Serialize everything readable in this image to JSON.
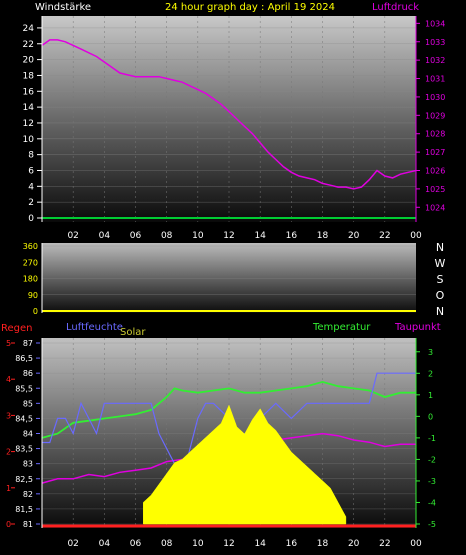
{
  "header": {
    "left_label": "Windstärke",
    "title": "24 hour graph day : April 19 2024",
    "right_label": "Luftdruck"
  },
  "legend": {
    "regen": "Regen",
    "luftfeuchte": "Luftfeuchte",
    "solar": "Solar",
    "temperatur": "Temperatur",
    "taupunkt": "Taupunkt"
  },
  "colors": {
    "wind": "#00cc33",
    "pressure": "#e000e0",
    "temperature": "#33ee33",
    "dewpoint": "#e000e0",
    "humidity": "#6a6aff",
    "solar": "#ffff00",
    "rain": "#ff2020",
    "tick_white": "#ffffff",
    "title": "#ffff00"
  },
  "chart_data": [
    {
      "type": "line",
      "name": "wind-pressure",
      "x_ticks": [
        "02",
        "04",
        "06",
        "08",
        "10",
        "12",
        "14",
        "16",
        "18",
        "20",
        "22",
        "00"
      ],
      "y_left_ticks": [
        "0",
        "2",
        "4",
        "6",
        "8",
        "10",
        "12",
        "14",
        "16",
        "18",
        "20",
        "22",
        "24"
      ],
      "y_left_lim": [
        0,
        25
      ],
      "y_right_ticks": [
        "1024",
        "1025",
        "1026",
        "1027",
        "1028",
        "1029",
        "1030",
        "1031",
        "1032",
        "1033",
        "1034"
      ],
      "y_right_lim": [
        1023.2,
        1034.4
      ],
      "series": [
        {
          "name": "Luftdruck",
          "axis": "right",
          "x": [
            0,
            0.5,
            1,
            1.5,
            2,
            2.5,
            3,
            3.5,
            4,
            4.5,
            5,
            5.5,
            6,
            6.5,
            7,
            7.5,
            8,
            8.5,
            9,
            9.5,
            10,
            10.5,
            11,
            11.5,
            12,
            12.5,
            13,
            13.5,
            14,
            14.5,
            15,
            15.5,
            16,
            16.5,
            17,
            17.5,
            18,
            18.5,
            19,
            19.5,
            20,
            20.5,
            21,
            21.5,
            22,
            22.5,
            23,
            23.5,
            24
          ],
          "y": [
            1032.8,
            1033.1,
            1033.1,
            1033.0,
            1032.8,
            1032.6,
            1032.4,
            1032.2,
            1031.9,
            1031.6,
            1031.3,
            1031.2,
            1031.1,
            1031.1,
            1031.1,
            1031.1,
            1031.0,
            1030.9,
            1030.8,
            1030.6,
            1030.4,
            1030.2,
            1029.9,
            1029.6,
            1029.2,
            1028.8,
            1028.4,
            1028.0,
            1027.5,
            1027.0,
            1026.6,
            1026.2,
            1025.9,
            1025.7,
            1025.6,
            1025.5,
            1025.3,
            1025.2,
            1025.1,
            1025.1,
            1025.0,
            1025.1,
            1025.5,
            1026.0,
            1025.7,
            1025.6,
            1025.8,
            1025.9,
            1026.0
          ]
        },
        {
          "name": "Windstärke",
          "axis": "left",
          "x": [
            0,
            24
          ],
          "y": [
            0,
            0
          ]
        }
      ]
    },
    {
      "type": "line",
      "name": "wind-direction",
      "y_ticks": [
        "0",
        "90",
        "180",
        "270",
        "360"
      ],
      "y_lim": [
        0,
        360
      ],
      "direction_labels": [
        "N",
        "W",
        "S",
        "O",
        "N"
      ],
      "series": [
        {
          "name": "direction",
          "x": [
            0,
            24
          ],
          "y": [
            0,
            0
          ]
        }
      ]
    },
    {
      "type": "line",
      "name": "temp-humidity-solar",
      "x_ticks": [
        "02",
        "04",
        "06",
        "08",
        "10",
        "12",
        "14",
        "16",
        "18",
        "20",
        "22",
        "00"
      ],
      "y_left_ticks": [
        "81",
        "81,5",
        "82",
        "82,5",
        "83",
        "83,5",
        "84",
        "84,5",
        "85",
        "85,5",
        "86",
        "86,5",
        "87"
      ],
      "y_left_lim": [
        81,
        87
      ],
      "y_right_ticks": [
        "-5",
        "-4",
        "-3",
        "-2",
        "-1",
        "0",
        "1",
        "2",
        "3"
      ],
      "y_right_lim": [
        -5,
        3.5
      ],
      "rain_ticks": [
        "0",
        "1",
        "2",
        "3",
        "4",
        "5"
      ],
      "series": [
        {
          "name": "Temperatur",
          "x": [
            0,
            1,
            2,
            3,
            4,
            5,
            6,
            7,
            8,
            8.5,
            9,
            10,
            11,
            12,
            13,
            14,
            15,
            16,
            17,
            18,
            19,
            20,
            21,
            22,
            23,
            24
          ],
          "y": [
            -1,
            -0.8,
            -0.3,
            -0.2,
            -0.1,
            0,
            0.1,
            0.3,
            0.9,
            1.3,
            1.2,
            1.1,
            1.2,
            1.3,
            1.1,
            1.1,
            1.2,
            1.3,
            1.4,
            1.6,
            1.4,
            1.3,
            1.2,
            0.9,
            1.1,
            1.1
          ]
        },
        {
          "name": "Taupunkt",
          "x": [
            0,
            1,
            2,
            3,
            4,
            5,
            6,
            7,
            8,
            9,
            10,
            11,
            12,
            13,
            14,
            15,
            16,
            17,
            18,
            19,
            20,
            21,
            22,
            23,
            24
          ],
          "y": [
            -3.1,
            -2.9,
            -2.9,
            -2.7,
            -2.8,
            -2.6,
            -2.5,
            -2.4,
            -2.1,
            -2.0,
            -1.8,
            -1.6,
            -1.4,
            -1.3,
            -1.2,
            -1.1,
            -1.0,
            -0.9,
            -0.8,
            -0.9,
            -1.1,
            -1.2,
            -1.4,
            -1.3,
            -1.3
          ]
        },
        {
          "name": "Luftfeuchte",
          "x": [
            0,
            0.5,
            1,
            1.5,
            2,
            2.5,
            3,
            3.5,
            4,
            4.5,
            5,
            6,
            7,
            7.5,
            8,
            8.5,
            9,
            9.5,
            10,
            10.5,
            11,
            12,
            12.5,
            13,
            13.5,
            14,
            15,
            16,
            17,
            18,
            19,
            20,
            21,
            21.5,
            22,
            23,
            24
          ],
          "y": [
            83.7,
            83.7,
            84.5,
            84.5,
            84.0,
            85.0,
            84.5,
            84.0,
            85.0,
            85.0,
            85.0,
            85.0,
            85.0,
            84.0,
            83.5,
            83.0,
            82.5,
            83.5,
            84.5,
            85.0,
            85.0,
            84.5,
            84.0,
            84.0,
            84.0,
            84.5,
            85.0,
            84.5,
            85.0,
            85.0,
            85.0,
            85.0,
            85.0,
            86.0,
            86.0,
            86.0,
            86.0
          ]
        },
        {
          "name": "Solar",
          "x": [
            6.5,
            7,
            7.5,
            8,
            8.5,
            9,
            9.5,
            10,
            10.5,
            11,
            11.5,
            12,
            12.5,
            13,
            13.5,
            14,
            14.5,
            15,
            15.5,
            16,
            16.5,
            17,
            17.5,
            18,
            18.5,
            19,
            19.5
          ],
          "y": [
            0.6,
            0.8,
            1.1,
            1.4,
            1.7,
            1.8,
            2.0,
            2.2,
            2.4,
            2.6,
            2.8,
            3.3,
            2.7,
            2.5,
            2.9,
            3.2,
            2.8,
            2.6,
            2.3,
            2.0,
            1.8,
            1.6,
            1.4,
            1.2,
            1.0,
            0.6,
            0.2
          ]
        },
        {
          "name": "Regen",
          "x": [
            0,
            24
          ],
          "y": [
            0,
            0
          ]
        }
      ]
    }
  ]
}
